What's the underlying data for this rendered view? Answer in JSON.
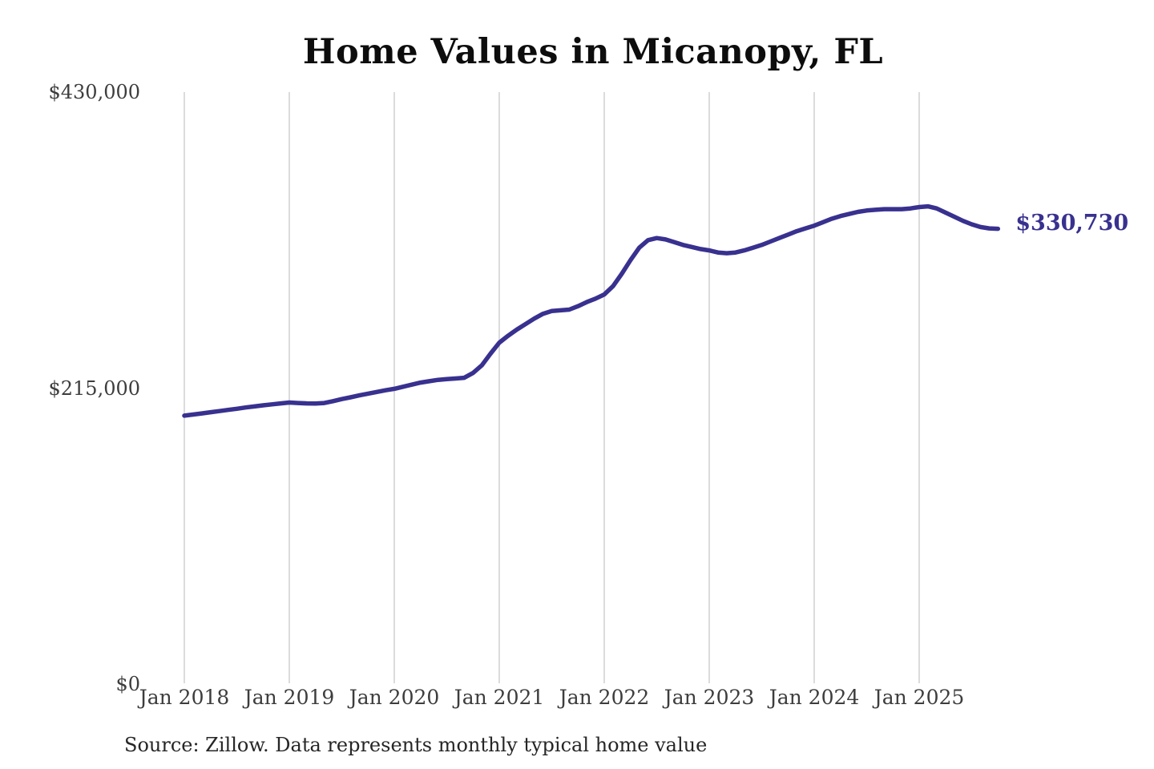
{
  "title": "Home Values in Micanopy, FL",
  "source_note": "Source: Zillow. Data represents monthly typical home value",
  "end_label": "$330,730",
  "colors": {
    "line": "#38318f",
    "grid": "#cccccc",
    "axis_text": "#3d3d3d",
    "title_text": "#0d0d0d",
    "annotation": "#38318f",
    "background": "#ffffff"
  },
  "y_axis": {
    "ticks": [
      {
        "label": "$430,000",
        "value": 430000
      },
      {
        "label": "$215,000",
        "value": 215000
      },
      {
        "label": "$0",
        "value": 0
      }
    ]
  },
  "x_axis": {
    "ticks": [
      "Jan 2018",
      "Jan 2019",
      "Jan 2020",
      "Jan 2021",
      "Jan 2022",
      "Jan 2023",
      "Jan 2024",
      "Jan 2025"
    ]
  },
  "chart_data": {
    "type": "line",
    "title": "Home Values in Micanopy, FL",
    "ylabel": "",
    "xlabel": "",
    "ylim": [
      0,
      430000
    ],
    "grid": "vertical-only",
    "legend": "none",
    "last_point_label": "$330,730",
    "source": "Zillow",
    "x": [
      "2018-01",
      "2018-02",
      "2018-03",
      "2018-04",
      "2018-05",
      "2018-06",
      "2018-07",
      "2018-08",
      "2018-09",
      "2018-10",
      "2018-11",
      "2018-12",
      "2019-01",
      "2019-02",
      "2019-03",
      "2019-04",
      "2019-05",
      "2019-06",
      "2019-07",
      "2019-08",
      "2019-09",
      "2019-10",
      "2019-11",
      "2019-12",
      "2020-01",
      "2020-02",
      "2020-03",
      "2020-04",
      "2020-05",
      "2020-06",
      "2020-07",
      "2020-08",
      "2020-09",
      "2020-10",
      "2020-11",
      "2020-12",
      "2021-01",
      "2021-02",
      "2021-03",
      "2021-04",
      "2021-05",
      "2021-06",
      "2021-07",
      "2021-08",
      "2021-09",
      "2021-10",
      "2021-11",
      "2021-12",
      "2022-01",
      "2022-02",
      "2022-03",
      "2022-04",
      "2022-05",
      "2022-06",
      "2022-07",
      "2022-08",
      "2022-09",
      "2022-10",
      "2022-11",
      "2022-12",
      "2023-01",
      "2023-02",
      "2023-03",
      "2023-04",
      "2023-05",
      "2023-06",
      "2023-07",
      "2023-08",
      "2023-09",
      "2023-10",
      "2023-11",
      "2023-12",
      "2024-01",
      "2024-02",
      "2024-03",
      "2024-04",
      "2024-05",
      "2024-06",
      "2024-07",
      "2024-08",
      "2024-09",
      "2024-10",
      "2024-11",
      "2024-12",
      "2025-01",
      "2025-02",
      "2025-03",
      "2025-04",
      "2025-05",
      "2025-06",
      "2025-07",
      "2025-08",
      "2025-09",
      "2025-10"
    ],
    "values": [
      195000,
      195800,
      196600,
      197500,
      198300,
      199200,
      200000,
      200900,
      201700,
      202500,
      203200,
      203900,
      204500,
      204200,
      203900,
      203800,
      204200,
      205500,
      207000,
      208300,
      209700,
      211000,
      212200,
      213400,
      214500,
      216000,
      217500,
      219000,
      220000,
      221000,
      221500,
      222000,
      222500,
      226000,
      231500,
      240000,
      248000,
      253000,
      257500,
      261500,
      265500,
      269000,
      271000,
      271500,
      272000,
      274500,
      277500,
      280000,
      283000,
      289000,
      298000,
      308000,
      317000,
      322500,
      324000,
      323000,
      321000,
      319000,
      317500,
      316000,
      315000,
      313500,
      313000,
      313500,
      315000,
      317000,
      319000,
      321500,
      324000,
      326500,
      329000,
      331000,
      333000,
      335500,
      338000,
      340000,
      341500,
      343000,
      344000,
      344500,
      345000,
      345000,
      345000,
      345500,
      346500,
      347000,
      345500,
      342500,
      339500,
      336500,
      334000,
      332000,
      331000,
      330730
    ]
  }
}
